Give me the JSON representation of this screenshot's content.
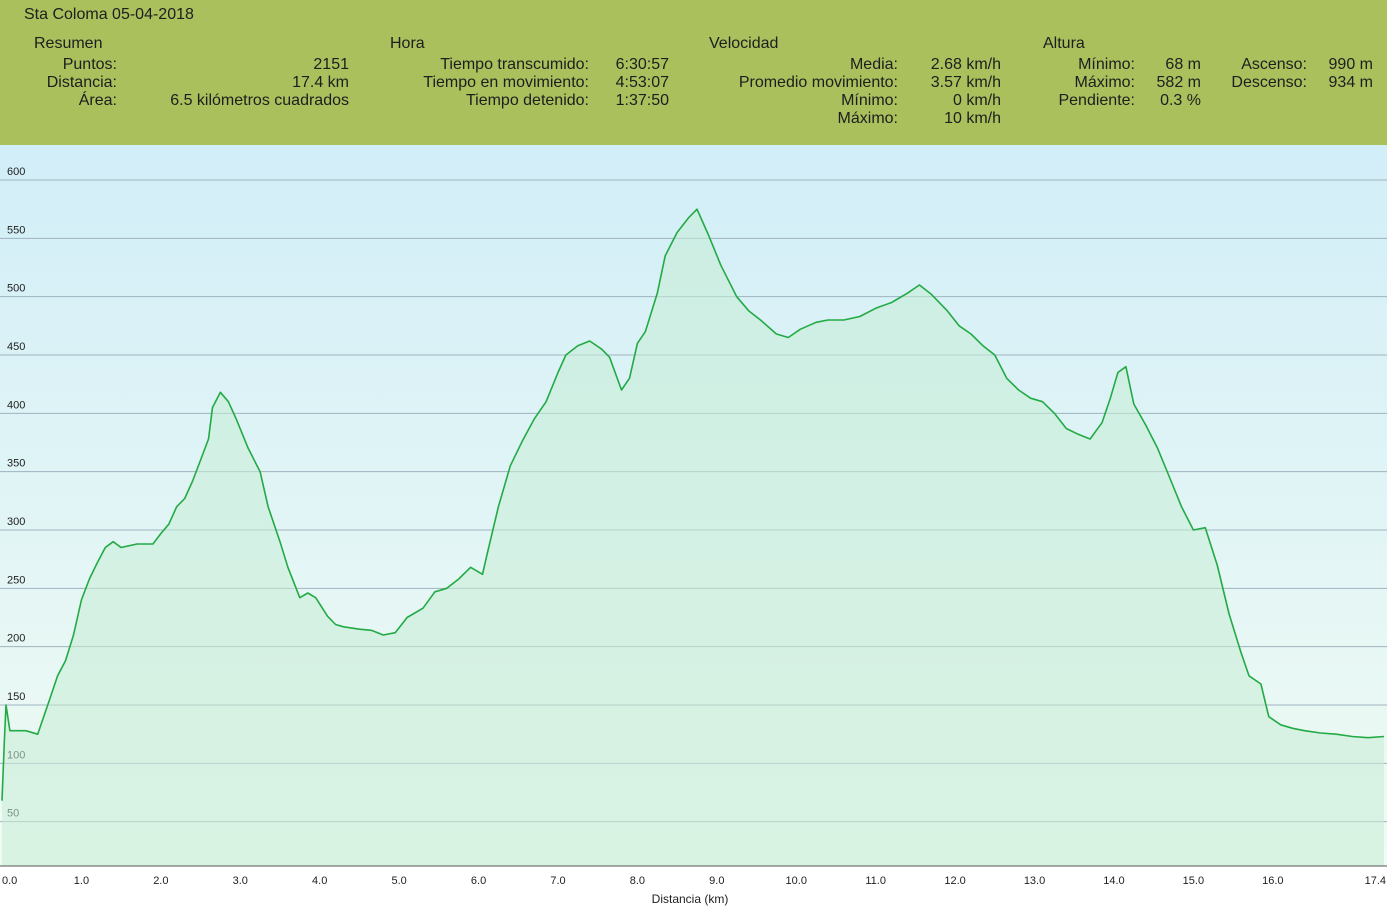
{
  "header": {
    "title": "Sta Coloma 05-04-2018",
    "resumen": {
      "heading": "Resumen",
      "puntos_label": "Puntos:",
      "puntos": "2151",
      "distancia_label": "Distancia:",
      "distancia": "17.4 km",
      "area_label": "Área:",
      "area": "6.5 kilómetros cuadrados"
    },
    "hora": {
      "heading": "Hora",
      "transcurrido_label": "Tiempo transcumido:",
      "transcurrido": "6:30:57",
      "movimiento_label": "Tiempo en movimiento:",
      "movimiento": "4:53:07",
      "detenido_label": "Tiempo detenido:",
      "detenido": "1:37:50"
    },
    "velocidad": {
      "heading": "Velocidad",
      "media_label": "Media:",
      "media": "2.68 km/h",
      "promedio_label": "Promedio movimiento:",
      "promedio": "3.57 km/h",
      "minimo_label": "Mínimo:",
      "minimo": "0 km/h",
      "maximo_label": "Máximo:",
      "maximo": "10 km/h"
    },
    "altura": {
      "heading": "Altura",
      "minimo_label": "Mínimo:",
      "minimo": "68 m",
      "maximo_label": "Máximo:",
      "maximo": "582 m",
      "pendiente_label": "Pendiente:",
      "pendiente": "0.3 %",
      "ascenso_label": "Ascenso:",
      "ascenso": "990 m",
      "descenso_label": "Descenso:",
      "descenso": "934 m"
    }
  },
  "colors": {
    "header_bg": "#a9c05d",
    "line": "#22aa44",
    "grid": "#9fb3bf",
    "bg_top": "#d2eef8",
    "bg_bottom": "#f0fbf3",
    "fill": "#c6ecd6"
  },
  "chart_data": {
    "type": "area",
    "xlabel": "Distancia (km)",
    "ylabel": "",
    "xlim": [
      0,
      17.4
    ],
    "ylim": [
      12,
      630
    ],
    "x_ticks": [
      "0.0",
      "1.0",
      "2.0",
      "3.0",
      "4.0",
      "5.0",
      "6.0",
      "7.0",
      "8.0",
      "9.0",
      "10.0",
      "11.0",
      "12.0",
      "13.0",
      "14.0",
      "15.0",
      "16.0",
      "17.4"
    ],
    "x_tick_values": [
      0,
      1,
      2,
      3,
      4,
      5,
      6,
      7,
      8,
      9,
      10,
      11,
      12,
      13,
      14,
      15,
      16,
      17.4
    ],
    "y_ticks": [
      50,
      100,
      150,
      200,
      250,
      300,
      350,
      400,
      450,
      500,
      550,
      600
    ],
    "grid": "horizontal",
    "series": [
      {
        "values": [
          [
            0.0,
            68
          ],
          [
            0.03,
            120
          ],
          [
            0.05,
            150
          ],
          [
            0.1,
            128
          ],
          [
            0.3,
            128
          ],
          [
            0.45,
            125
          ],
          [
            0.5,
            135
          ],
          [
            0.6,
            155
          ],
          [
            0.7,
            175
          ],
          [
            0.8,
            188
          ],
          [
            0.9,
            210
          ],
          [
            1.0,
            240
          ],
          [
            1.1,
            258
          ],
          [
            1.2,
            272
          ],
          [
            1.3,
            285
          ],
          [
            1.4,
            290
          ],
          [
            1.5,
            285
          ],
          [
            1.7,
            288
          ],
          [
            1.9,
            288
          ],
          [
            2.0,
            297
          ],
          [
            2.1,
            305
          ],
          [
            2.2,
            320
          ],
          [
            2.3,
            327
          ],
          [
            2.4,
            342
          ],
          [
            2.5,
            360
          ],
          [
            2.6,
            378
          ],
          [
            2.65,
            405
          ],
          [
            2.75,
            418
          ],
          [
            2.85,
            410
          ],
          [
            2.95,
            395
          ],
          [
            3.1,
            370
          ],
          [
            3.25,
            350
          ],
          [
            3.35,
            320
          ],
          [
            3.5,
            290
          ],
          [
            3.6,
            268
          ],
          [
            3.75,
            242
          ],
          [
            3.85,
            246
          ],
          [
            3.95,
            242
          ],
          [
            4.1,
            226
          ],
          [
            4.2,
            219
          ],
          [
            4.3,
            217
          ],
          [
            4.5,
            215
          ],
          [
            4.65,
            214
          ],
          [
            4.8,
            210
          ],
          [
            4.95,
            212
          ],
          [
            5.1,
            225
          ],
          [
            5.3,
            233
          ],
          [
            5.45,
            247
          ],
          [
            5.6,
            250
          ],
          [
            5.75,
            258
          ],
          [
            5.9,
            268
          ],
          [
            6.05,
            262
          ],
          [
            6.1,
            277
          ],
          [
            6.25,
            320
          ],
          [
            6.4,
            355
          ],
          [
            6.55,
            376
          ],
          [
            6.7,
            395
          ],
          [
            6.85,
            410
          ],
          [
            7.0,
            435
          ],
          [
            7.1,
            450
          ],
          [
            7.25,
            458
          ],
          [
            7.4,
            462
          ],
          [
            7.55,
            455
          ],
          [
            7.65,
            448
          ],
          [
            7.8,
            420
          ],
          [
            7.9,
            430
          ],
          [
            8.0,
            460
          ],
          [
            8.1,
            470
          ],
          [
            8.25,
            503
          ],
          [
            8.35,
            535
          ],
          [
            8.5,
            555
          ],
          [
            8.65,
            568
          ],
          [
            8.75,
            575
          ],
          [
            8.9,
            552
          ],
          [
            9.05,
            527
          ],
          [
            9.25,
            500
          ],
          [
            9.4,
            488
          ],
          [
            9.55,
            480
          ],
          [
            9.75,
            468
          ],
          [
            9.9,
            465
          ],
          [
            10.05,
            472
          ],
          [
            10.25,
            478
          ],
          [
            10.4,
            480
          ],
          [
            10.6,
            480
          ],
          [
            10.8,
            483
          ],
          [
            11.0,
            490
          ],
          [
            11.2,
            495
          ],
          [
            11.4,
            503
          ],
          [
            11.55,
            510
          ],
          [
            11.7,
            502
          ],
          [
            11.9,
            488
          ],
          [
            12.05,
            475
          ],
          [
            12.2,
            468
          ],
          [
            12.35,
            458
          ],
          [
            12.5,
            450
          ],
          [
            12.65,
            430
          ],
          [
            12.8,
            420
          ],
          [
            12.95,
            413
          ],
          [
            13.1,
            410
          ],
          [
            13.25,
            400
          ],
          [
            13.4,
            387
          ],
          [
            13.55,
            382
          ],
          [
            13.7,
            378
          ],
          [
            13.85,
            392
          ],
          [
            13.95,
            412
          ],
          [
            14.05,
            435
          ],
          [
            14.15,
            440
          ],
          [
            14.25,
            408
          ],
          [
            14.4,
            390
          ],
          [
            14.55,
            370
          ],
          [
            14.7,
            345
          ],
          [
            14.85,
            320
          ],
          [
            15.0,
            300
          ],
          [
            15.15,
            302
          ],
          [
            15.3,
            270
          ],
          [
            15.45,
            228
          ],
          [
            15.6,
            195
          ],
          [
            15.7,
            175
          ],
          [
            15.85,
            168
          ],
          [
            15.95,
            140
          ],
          [
            16.1,
            133
          ],
          [
            16.25,
            130
          ],
          [
            16.4,
            128
          ],
          [
            16.6,
            126
          ],
          [
            16.8,
            125
          ],
          [
            17.0,
            123
          ],
          [
            17.2,
            122
          ],
          [
            17.4,
            123
          ]
        ]
      }
    ]
  }
}
